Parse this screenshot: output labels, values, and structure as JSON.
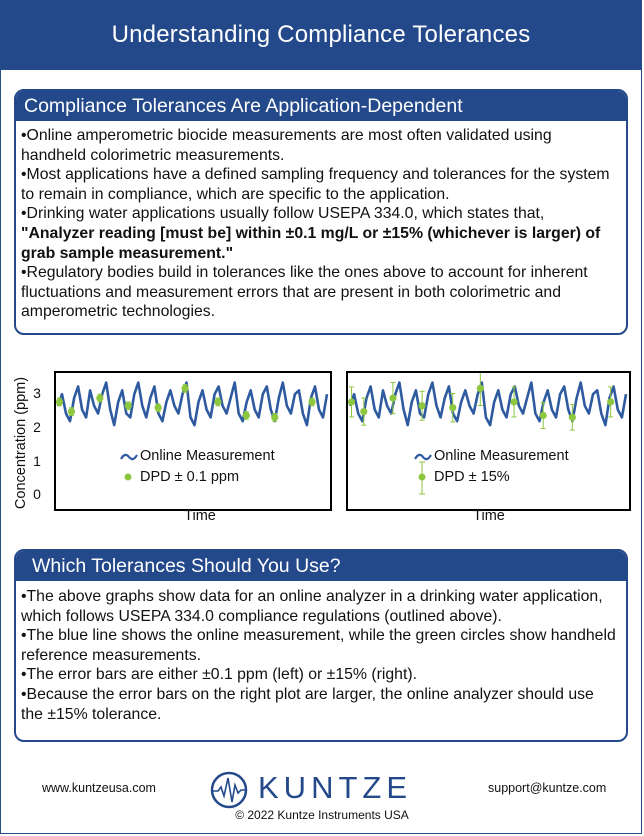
{
  "header": {
    "title": "Understanding Compliance Tolerances"
  },
  "section1": {
    "title": "Compliance Tolerances Are Application-Dependent",
    "p1": "•Online amperometric biocide measurements are most often validated using handheld colorimetric measurements.",
    "p2": "•Most applications have a defined sampling frequency and tolerances for the system to remain in compliance, which are specific to the application.",
    "p3": "•Drinking water applications usually follow USEPA 334.0, which states that,",
    "p3_quote": "\"Analyzer reading [must be] within ±0.1 mg/L or ±15% (whichever is larger) of grab sample measurement.\"",
    "p4": "•Regulatory bodies build in tolerances like the ones above to account for inherent fluctuations and measurement errors that are present in both colorimetric and amperometric technologies."
  },
  "chart_data": [
    {
      "type": "line",
      "ylabel": "Concentration (ppm)",
      "xlabel": "Time",
      "yticks": [
        "0",
        "1",
        "2",
        "3"
      ],
      "ylim": [
        -0.15,
        3.35
      ],
      "series": [
        {
          "name": "Online Measurement",
          "color": "#2e5aa0",
          "values": [
            2.5,
            2.8,
            2.3,
            2.1,
            2.7,
            3.0,
            2.4,
            2.2,
            2.9,
            2.5,
            2.3,
            2.8,
            3.1,
            2.4,
            2.0,
            2.6,
            2.9,
            2.3,
            2.2,
            2.8,
            3.1,
            2.5,
            2.2,
            2.7,
            3.0,
            2.3,
            2.1,
            2.6,
            2.9,
            2.5,
            2.3,
            2.8,
            3.1,
            2.2,
            2.0,
            2.6,
            2.9,
            2.4,
            2.2,
            2.8,
            3.0,
            2.5,
            2.3,
            2.7,
            3.1,
            2.3,
            2.1,
            2.6,
            2.9,
            2.4,
            2.2,
            2.8,
            3.0,
            2.4,
            2.1,
            2.7,
            3.1,
            2.5,
            2.3,
            2.8,
            2.9,
            2.3,
            2.0,
            2.7,
            3.0,
            2.4,
            2.2,
            2.8
          ]
        },
        {
          "name": "DPD ± 0.1 ppm",
          "color": "#8dc63f",
          "points": [
            [
              1,
              2.6
            ],
            [
              9,
              2.35
            ],
            [
              28,
              2.7
            ],
            [
              47,
              2.5
            ],
            [
              67,
              2.45
            ],
            [
              85,
              2.95
            ],
            [
              107,
              2.6
            ],
            [
              126,
              2.25
            ],
            [
              145,
              2.2
            ],
            [
              170,
              2.6
            ]
          ],
          "error": 0.1
        }
      ]
    },
    {
      "type": "line",
      "ylabel": "Concentration (ppm)",
      "xlabel": "Time",
      "ylim": [
        -0.15,
        3.35
      ],
      "series": [
        {
          "name": "Online Measurement",
          "color": "#2e5aa0",
          "values": [
            2.5,
            2.8,
            2.3,
            2.1,
            2.7,
            3.0,
            2.4,
            2.2,
            2.9,
            2.5,
            2.3,
            2.8,
            3.1,
            2.4,
            2.0,
            2.6,
            2.9,
            2.3,
            2.2,
            2.8,
            3.1,
            2.5,
            2.2,
            2.7,
            3.0,
            2.3,
            2.1,
            2.6,
            2.9,
            2.5,
            2.3,
            2.8,
            3.1,
            2.2,
            2.0,
            2.6,
            2.9,
            2.4,
            2.2,
            2.8,
            3.0,
            2.5,
            2.3,
            2.7,
            3.1,
            2.3,
            2.1,
            2.6,
            2.9,
            2.4,
            2.2,
            2.8,
            3.0,
            2.4,
            2.1,
            2.7,
            3.1,
            2.5,
            2.3,
            2.8,
            2.9,
            2.3,
            2.0,
            2.7,
            3.0,
            2.4,
            2.2,
            2.8
          ]
        },
        {
          "name": "DPD ± 15%",
          "color": "#8dc63f",
          "points": [
            [
              1,
              2.6
            ],
            [
              9,
              2.35
            ],
            [
              28,
              2.7
            ],
            [
              47,
              2.5
            ],
            [
              67,
              2.45
            ],
            [
              85,
              2.95
            ],
            [
              107,
              2.6
            ],
            [
              126,
              2.25
            ],
            [
              145,
              2.2
            ],
            [
              170,
              2.6
            ]
          ],
          "error_pct": 15
        }
      ]
    }
  ],
  "section2": {
    "title": "Which Tolerances Should You Use?",
    "p1": "•The above graphs show data for an online analyzer in a drinking water application, which follows USEPA 334.0 compliance regulations (outlined above).",
    "p2": "•The blue line shows the online measurement, while the green circles show handheld reference measurements.",
    "p3": "•The error bars are either ±0.1 ppm (left) or ±15% (right).",
    "p4": "•Because the error bars on the right plot are larger, the online analyzer should use the ±15% tolerance."
  },
  "footer": {
    "website": "www.kuntzeusa.com",
    "brand": "KUNTZE",
    "email": "support@kuntze.com",
    "copyright": "© 2022 Kuntze Instruments USA",
    "logo_icon": "waveform-logo-icon",
    "brand_color": "#24498a"
  }
}
